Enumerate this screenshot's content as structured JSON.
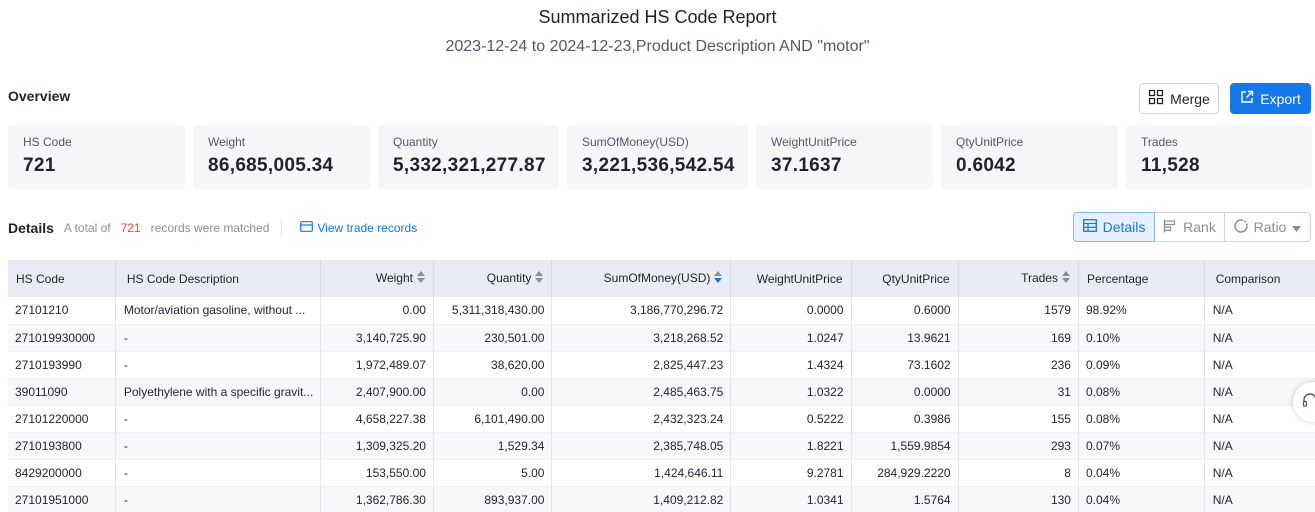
{
  "report": {
    "title": "Summarized HS Code Report",
    "subtitle": "2023-12-24 to 2024-12-23,Product Description AND \"motor\""
  },
  "overview": {
    "label": "Overview",
    "merge_label": "Merge",
    "export_label": "Export",
    "cards": [
      {
        "label": "HS Code",
        "value": "721"
      },
      {
        "label": "Weight",
        "value": "86,685,005.34"
      },
      {
        "label": "Quantity",
        "value": "5,332,321,277.87"
      },
      {
        "label": "SumOfMoney(USD)",
        "value": "3,221,536,542.54"
      },
      {
        "label": "WeightUnitPrice",
        "value": "37.1637"
      },
      {
        "label": "QtyUnitPrice",
        "value": "0.6042"
      },
      {
        "label": "Trades",
        "value": "11,528"
      }
    ]
  },
  "details": {
    "title": "Details",
    "total_prefix": "A total of",
    "total_count": "721",
    "total_suffix": "records were matched",
    "view_link": "View trade records",
    "views": {
      "details": "Details",
      "rank": "Rank",
      "ratio": "Ratio"
    }
  },
  "table": {
    "columns": [
      "HS Code",
      "HS Code Description",
      "Weight",
      "Quantity",
      "SumOfMoney(USD)",
      "WeightUnitPrice",
      "QtyUnitPrice",
      "Trades",
      "Percentage",
      "Comparison"
    ],
    "rows": [
      [
        "27101210",
        "Motor/aviation gasoline, without ...",
        "0.00",
        "5,311,318,430.00",
        "3,186,770,296.72",
        "0.0000",
        "0.6000",
        "1579",
        "98.92%",
        "N/A"
      ],
      [
        "271019930000",
        "-",
        "3,140,725.90",
        "230,501.00",
        "3,218,268.52",
        "1.0247",
        "13.9621",
        "169",
        "0.10%",
        "N/A"
      ],
      [
        "2710193990",
        "-",
        "1,972,489.07",
        "38,620.00",
        "2,825,447.23",
        "1.4324",
        "73.1602",
        "236",
        "0.09%",
        "N/A"
      ],
      [
        "39011090",
        "Polyethylene with a specific gravit...",
        "2,407,900.00",
        "0.00",
        "2,485,463.75",
        "1.0322",
        "0.0000",
        "31",
        "0.08%",
        "N/A"
      ],
      [
        "27101220000",
        "-",
        "4,658,227.38",
        "6,101,490.00",
        "2,432,323.24",
        "0.5222",
        "0.3986",
        "155",
        "0.08%",
        "N/A"
      ],
      [
        "2710193800",
        "-",
        "1,309,325.20",
        "1,529.34",
        "2,385,748.05",
        "1.8221",
        "1,559.9854",
        "293",
        "0.07%",
        "N/A"
      ],
      [
        "8429200000",
        "-",
        "153,550.00",
        "5.00",
        "1,424,646.11",
        "9.2781",
        "284,929.2220",
        "8",
        "0.04%",
        "N/A"
      ],
      [
        "27101951000",
        "-",
        "1,362,786.30",
        "893,937.00",
        "1,409,212.82",
        "1.0341",
        "1.5764",
        "130",
        "0.04%",
        "N/A"
      ]
    ]
  },
  "colors": {
    "accent": "#1677e8",
    "count_red": "#e8483b",
    "header_bg": "#e9ecf6",
    "card_bg": "#f5f6f8"
  }
}
